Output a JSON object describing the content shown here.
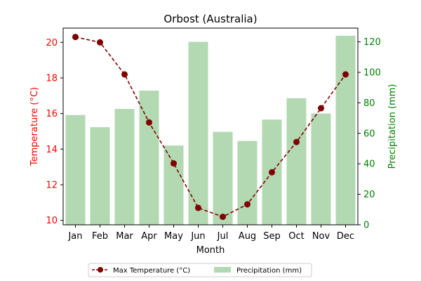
{
  "chart_data": {
    "type": "bar+line",
    "title": "Orbost (Australia)",
    "xlabel": "Month",
    "ylabel_left": "Temperature (°C)",
    "ylabel_right": "Precipitation (mm)",
    "categories": [
      "Jan",
      "Feb",
      "Mar",
      "Apr",
      "May",
      "Jun",
      "Jul",
      "Aug",
      "Sep",
      "Oct",
      "Nov",
      "Dec"
    ],
    "ylim_left": [
      9.75,
      20.8
    ],
    "ylim_right": [
      0,
      129
    ],
    "yticks_left": [
      10,
      12,
      14,
      16,
      18,
      20
    ],
    "yticks_right": [
      0,
      20,
      40,
      60,
      80,
      100,
      120
    ],
    "legend_position": "bottom-center",
    "grid": false,
    "series": [
      {
        "name": "Max Temperature (°C)",
        "kind": "line",
        "axis": "left",
        "values": [
          20.3,
          20.0,
          18.2,
          15.5,
          13.2,
          10.7,
          10.2,
          10.9,
          12.7,
          14.4,
          16.3,
          18.2
        ],
        "color": "#800000",
        "style": "dashed",
        "marker": "circle"
      },
      {
        "name": "Precipitation (mm)",
        "kind": "bar",
        "axis": "right",
        "values": [
          72,
          64,
          76,
          88,
          52,
          120,
          61,
          55,
          69,
          83,
          73,
          124
        ],
        "color": "#b2d9b2"
      }
    ],
    "axis_colors": {
      "left": "#ff0000",
      "right": "#008000"
    }
  }
}
